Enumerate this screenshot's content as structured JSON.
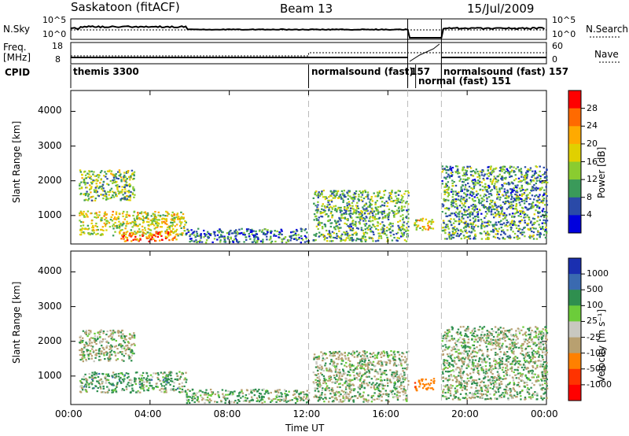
{
  "header": {
    "site": "Saskatoon (fitACF)",
    "beam": "Beam 13",
    "date": "15/Jul/2009"
  },
  "left_labels": {
    "nsky": "N.Sky",
    "freq": "Freq.",
    "freq_unit": "[MHz]",
    "cpid": "CPID"
  },
  "right_labels": {
    "nsearch": "N.Search",
    "nave": "Nave"
  },
  "noise_ticks_left": [
    "10^5",
    "10^0"
  ],
  "noise_ticks_right": [
    "10^5",
    "10^0"
  ],
  "freq_ticks": [
    "18",
    "8"
  ],
  "nave_ticks": [
    "60",
    "0"
  ],
  "cpid_segments": [
    {
      "label": "themis 3300",
      "start": 0.0,
      "end": 12.0
    },
    {
      "label": "normalsound (fast)",
      "start": 12.0,
      "end": 17.0
    },
    {
      "label": "157",
      "start": 17.0,
      "end": 17.4
    },
    {
      "label": "normal (fast) 151",
      "start": 17.4,
      "end": 18.7
    },
    {
      "label": "normalsound (fast)  157",
      "start": 18.7,
      "end": 24.0
    }
  ],
  "axis": {
    "ylabel": "Slant Range [km]",
    "yticks": [
      "4000",
      "3000",
      "2000",
      "1000"
    ],
    "xticks": [
      "00:00",
      "04:00",
      "08:00",
      "12:00",
      "16:00",
      "20:00",
      "00:00"
    ],
    "xlabel": "Time UT"
  },
  "power_scale": {
    "label": "Power [dB]",
    "ticks": [
      "28",
      "24",
      "20",
      "16",
      "12",
      "8",
      "4"
    ],
    "colors": [
      "#ff0000",
      "#ff6a00",
      "#ffaa00",
      "#e0d000",
      "#8acc30",
      "#3a9a5a",
      "#2a4aa8",
      "#0000dd"
    ]
  },
  "velocity_scale": {
    "label": "Velocity [m s⁻¹]",
    "ticks": [
      "1000",
      "500",
      "100",
      "25",
      "-25",
      "-100",
      "-500",
      "-1000"
    ],
    "colors": [
      "#1a2fb0",
      "#3a6ab0",
      "#2f8f4f",
      "#6ccc3a",
      "#c8c8c0",
      "#b8a070",
      "#ff8000",
      "#ff3300",
      "#ff0000"
    ]
  },
  "chart_data": [
    {
      "type": "heatmap",
      "title": "Saskatoon (fitACF) Beam 13 15/Jul/2009",
      "xlabel": "Time UT",
      "ylabel": "Slant Range [km]",
      "xlim": [
        0,
        24
      ],
      "ylim": [
        180,
        4600
      ],
      "quantity": "Power [dB]",
      "colorbar_range": [
        0,
        30
      ],
      "regions": [
        {
          "t": [
            0.4,
            5.8
          ],
          "r": [
            400,
            1100
          ],
          "value": 16
        },
        {
          "t": [
            0.4,
            3.2
          ],
          "r": [
            1400,
            2300
          ],
          "value": 12
        },
        {
          "t": [
            2.5,
            5.3
          ],
          "r": [
            230,
            520
          ],
          "value": 24
        },
        {
          "t": [
            5.8,
            12.0
          ],
          "r": [
            200,
            600
          ],
          "value": 6
        },
        {
          "t": [
            12.2,
            17.0
          ],
          "r": [
            230,
            1700
          ],
          "value": 10
        },
        {
          "t": [
            17.3,
            18.3
          ],
          "r": [
            560,
            900
          ],
          "value": 18
        },
        {
          "t": [
            18.7,
            24.0
          ],
          "r": [
            300,
            2400
          ],
          "value": 9
        }
      ]
    },
    {
      "type": "heatmap",
      "xlabel": "Time UT",
      "ylabel": "Slant Range [km]",
      "xlim": [
        0,
        24
      ],
      "ylim": [
        180,
        4600
      ],
      "quantity": "Velocity [m s-1]",
      "colorbar_range": [
        -1000,
        1000
      ],
      "regions": [
        {
          "t": [
            0.4,
            5.8
          ],
          "r": [
            500,
            1100
          ],
          "value": 80
        },
        {
          "t": [
            0.4,
            3.2
          ],
          "r": [
            1400,
            2300
          ],
          "value": 0
        },
        {
          "t": [
            5.8,
            12.0
          ],
          "r": [
            200,
            600
          ],
          "value": 40
        },
        {
          "t": [
            12.2,
            17.0
          ],
          "r": [
            230,
            1700
          ],
          "value": -20
        },
        {
          "t": [
            17.3,
            18.3
          ],
          "r": [
            560,
            900
          ],
          "value": -600
        },
        {
          "t": [
            18.7,
            24.0
          ],
          "r": [
            300,
            2400
          ],
          "value": 10
        }
      ]
    }
  ]
}
